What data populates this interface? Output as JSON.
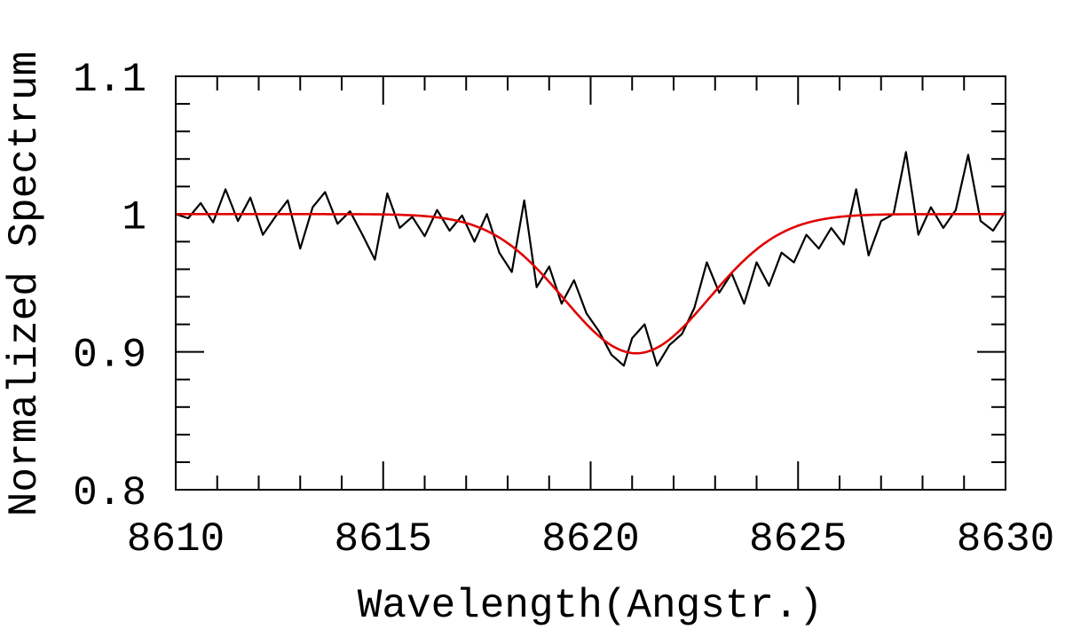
{
  "chart_data": {
    "type": "line",
    "xlabel": "Wavelength(Angstr.)",
    "ylabel": "Normalized Spectrum",
    "xlim": [
      8610,
      8630
    ],
    "ylim": [
      0.8,
      1.1
    ],
    "xticks_major": [
      8610,
      8615,
      8620,
      8625,
      8630
    ],
    "xtick_labels": [
      "8610",
      "8615",
      "8620",
      "8625",
      "8630"
    ],
    "yticks_major": [
      0.8,
      0.9,
      1.0,
      1.1
    ],
    "ytick_labels": [
      "0.8",
      "0.9",
      "1",
      "1.1"
    ],
    "x_minor_step": 1,
    "y_minor_step": 0.02,
    "grid": false,
    "series": [
      {
        "role": "observed",
        "color": "#000000",
        "x": [
          8610.0,
          8610.3,
          8610.6,
          8610.9,
          8611.2,
          8611.5,
          8611.8,
          8612.1,
          8612.4,
          8612.7,
          8613.0,
          8613.3,
          8613.6,
          8613.9,
          8614.2,
          8614.5,
          8614.8,
          8615.1,
          8615.4,
          8615.7,
          8616.0,
          8616.3,
          8616.6,
          8616.9,
          8617.2,
          8617.5,
          8617.8,
          8618.1,
          8618.4,
          8618.7,
          8619.0,
          8619.3,
          8619.6,
          8619.9,
          8620.2,
          8620.5,
          8620.8,
          8621.0,
          8621.3,
          8621.6,
          8621.9,
          8622.2,
          8622.5,
          8622.8,
          8623.1,
          8623.4,
          8623.7,
          8624.0,
          8624.3,
          8624.6,
          8624.9,
          8625.2,
          8625.5,
          8625.8,
          8626.1,
          8626.4,
          8626.7,
          8627.0,
          8627.3,
          8627.6,
          8627.9,
          8628.2,
          8628.5,
          8628.8,
          8629.1,
          8629.4,
          8629.7,
          8630.0
        ],
        "y": [
          1.0,
          0.997,
          1.008,
          0.994,
          1.018,
          0.995,
          1.012,
          0.985,
          0.998,
          1.01,
          0.975,
          1.005,
          1.016,
          0.993,
          1.002,
          0.985,
          0.967,
          1.015,
          0.99,
          0.998,
          0.984,
          1.003,
          0.988,
          0.999,
          0.98,
          1.0,
          0.972,
          0.958,
          1.01,
          0.947,
          0.962,
          0.935,
          0.952,
          0.928,
          0.915,
          0.898,
          0.89,
          0.91,
          0.92,
          0.89,
          0.905,
          0.913,
          0.932,
          0.965,
          0.943,
          0.957,
          0.935,
          0.965,
          0.948,
          0.972,
          0.965,
          0.985,
          0.975,
          0.99,
          0.978,
          1.018,
          0.97,
          0.995,
          1.0,
          1.045,
          0.985,
          1.005,
          0.99,
          1.003,
          1.043,
          0.995,
          0.988,
          1.002
        ]
      },
      {
        "role": "gaussian-fit",
        "color": "#e00000",
        "function": "gaussian",
        "continuum": 1.0,
        "depth": 0.101,
        "center": 8621.1,
        "sigma": 1.75
      }
    ]
  }
}
